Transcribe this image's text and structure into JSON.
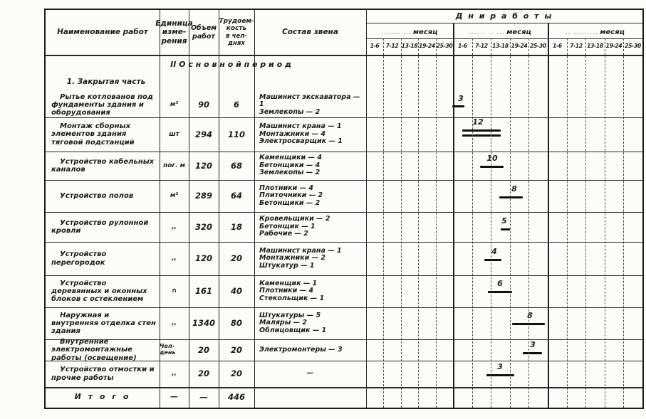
{
  "columns": {
    "name_header": "Наименование работ",
    "unit_header_lines": [
      "Единица",
      "изме-",
      "рения"
    ],
    "volume_header_lines": [
      "Объем",
      "работ"
    ],
    "labor_header_lines": [
      "Трудоем-",
      "кость",
      "в чел-днях"
    ],
    "crew_header": "Состав звена"
  },
  "gantt_header": {
    "title": "Д н и    р а б о т ы",
    "months": [
      {
        "leader": "....... ...",
        "label": "месяц"
      },
      {
        "leader": "...... .. ...",
        "label": "месяц"
      },
      {
        "leader": ".. .........",
        "label": "месяц"
      }
    ],
    "day_ranges": [
      "1-6",
      "7-12",
      "13-18",
      "19-24",
      "25-30"
    ]
  },
  "period_heading": "II   О с н о в н о й    п е р и о д",
  "section_heading": "1. Закрытая часть",
  "rows": [
    {
      "name": "Рытье котлованов под фундаменты здания и оборудования",
      "unit": "м³",
      "volume": "90",
      "labor": "6",
      "crew": [
        "Машинист экскаватора — 1",
        "Землекопы — 2"
      ]
    },
    {
      "name": "Монтаж сборных элементов здания тяговой подстанций",
      "unit": "шт",
      "volume": "294",
      "labor": "110",
      "crew": [
        "Машинист крана — 1",
        "Монтажники — 4",
        "Электросварщик — 1"
      ]
    },
    {
      "name": "Устройство кабельных каналов",
      "unit": "пог. м",
      "volume": "120",
      "labor": "68",
      "crew": [
        "Каменщики — 4",
        "Бетонщики — 4",
        "Землекопы — 2"
      ]
    },
    {
      "name": "Устройство полов",
      "unit": "м²",
      "volume": "289",
      "labor": "64",
      "crew": [
        "Плотники — 4",
        "Плиточники — 2",
        "Бетонщики — 2"
      ]
    },
    {
      "name": "Устройство рулонной кровли",
      "unit": ",,",
      "volume": "320",
      "labor": "18",
      "crew": [
        "Кровельщики — 2",
        "Бетонщик — 1",
        "Рабочие — 2"
      ]
    },
    {
      "name": "Устройство перегородок",
      "unit": ",,",
      "volume": "120",
      "labor": "20",
      "crew": [
        "Машинист крана — 1",
        "Монтажники — 2",
        "Штукатур — 1"
      ]
    },
    {
      "name": "Устройство деревянных и оконных блоков с остеклением",
      "unit": "∩",
      "volume": "161",
      "labor": "40",
      "crew": [
        "Каменщик — 1",
        "Плотники — 4",
        "Стекольщик — 1"
      ]
    },
    {
      "name": "Наружная и внутренняя отделка стен здания",
      "unit": ",,",
      "volume": "1340",
      "labor": "80",
      "crew": [
        "Штукатуры — 5",
        "Маляры — 2",
        "Облицовщик — 1"
      ]
    },
    {
      "name": "Внутренние электромонтажные работы (освещение)",
      "unit": "Чел-день",
      "volume": "20",
      "labor": "20",
      "crew": [
        "Электромонтеры — 3"
      ]
    },
    {
      "name": "Устройство отмостки и прочие работы",
      "unit": ",,",
      "volume": "20",
      "labor": "20",
      "crew": [
        "—"
      ]
    }
  ],
  "total": {
    "label": "И т о г о",
    "unit": "—",
    "volume": "—",
    "labor": "446"
  },
  "chart_data": {
    "type": "gantt",
    "title": "Дни работы",
    "time_axis": {
      "months": 3,
      "day_ranges_per_month": [
        "1-6",
        "7-12",
        "13-18",
        "19-24",
        "25-30"
      ]
    },
    "bars": [
      {
        "task": "Рытье котлованов под фундаменты здания и оборудования",
        "duration": "3",
        "month": 2
      },
      {
        "task": "Монтаж сборных элементов здания тяговой подстанций",
        "duration": "12",
        "month": 2,
        "double_line": true
      },
      {
        "task": "Устройство кабельных каналов",
        "duration": "10",
        "month": 2
      },
      {
        "task": "Устройство полов",
        "duration": "8",
        "month": 2
      },
      {
        "task": "Устройство рулонной кровли",
        "duration": "5",
        "month": 2
      },
      {
        "task": "Устройство перегородок",
        "duration": "4",
        "month": 2
      },
      {
        "task": "Устройство деревянных и оконных блоков с остеклением",
        "duration": "6",
        "month": 2
      },
      {
        "task": "Наружная и внутренняя отделка стен здания",
        "duration": "8",
        "month": 2
      },
      {
        "task": "Внутренние электромонтажные работы (освещение)",
        "duration": "3",
        "month": 2
      },
      {
        "task": "Устройство отмостки и прочие работы",
        "duration": "3",
        "month": 2
      }
    ]
  }
}
